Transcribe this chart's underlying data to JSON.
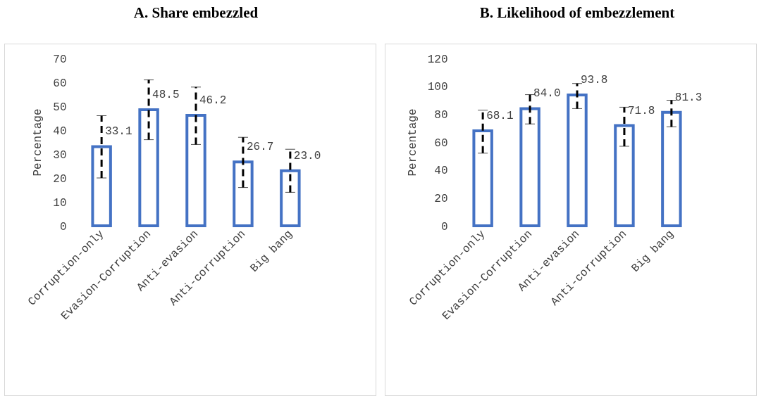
{
  "chart_data": [
    {
      "type": "bar",
      "title": "A. Share embezzled",
      "ylabel": "Percentage",
      "categories": [
        "Corruption-only",
        "Evasion-Corruption",
        "Anti-evasion",
        "Anti-corruption",
        "Big bang"
      ],
      "color": "#4472c4",
      "values": [
        33.1,
        48.5,
        46.2,
        26.7,
        23.0
      ],
      "value_labels": [
        "33.1",
        "48.5",
        "46.2",
        "26.7",
        "23.0"
      ],
      "errors": [
        [
          20,
          46
        ],
        [
          36,
          61
        ],
        [
          34,
          58
        ],
        [
          16,
          37
        ],
        [
          14,
          32
        ]
      ],
      "ylim": [
        0,
        70
      ],
      "yticks": [
        0,
        10,
        20,
        30,
        40,
        50,
        60,
        70
      ],
      "grid": false
    },
    {
      "type": "bar",
      "title": "B. Likelihood of embezzlement",
      "ylabel": "Percentage",
      "categories": [
        "Corruption-only",
        "Evasion-Corruption",
        "Anti-evasion",
        "Anti-corruption",
        "Big bang"
      ],
      "color": "#4472c4",
      "values": [
        68.1,
        84.0,
        93.8,
        71.8,
        81.3
      ],
      "value_labels": [
        "68.1",
        "84.0",
        "93.8",
        "71.8",
        "81.3"
      ],
      "errors": [
        [
          52,
          83
        ],
        [
          73,
          94
        ],
        [
          84,
          102
        ],
        [
          57,
          85
        ],
        [
          71,
          90
        ]
      ],
      "ylim": [
        0,
        120
      ],
      "yticks": [
        0,
        20,
        40,
        60,
        80,
        100,
        120
      ],
      "grid": false
    }
  ]
}
